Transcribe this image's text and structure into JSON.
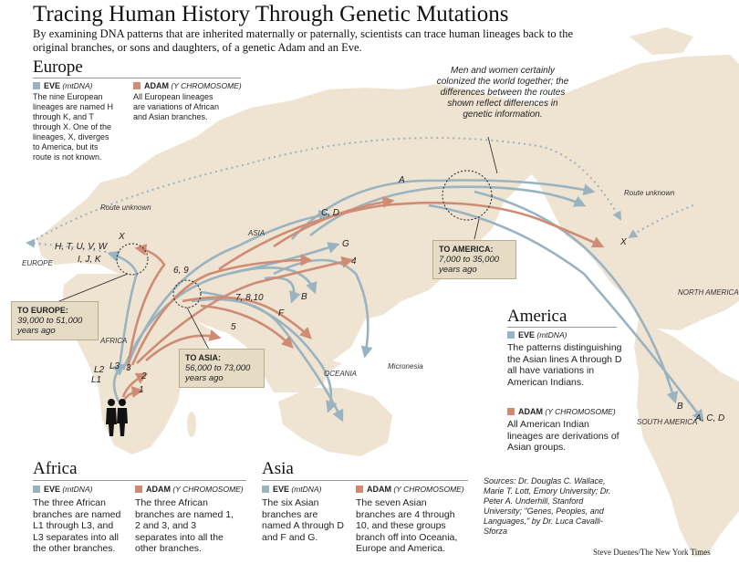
{
  "title": "Tracing Human History Through Genetic Mutations",
  "subtitle": "By examining DNA patterns that are inherited maternally or paternally, scientists can trace human lineages back to the original branches, or sons and daughters, of a genetic Adam and an Eve.",
  "colors": {
    "eve": "#9ab3c0",
    "adam": "#cf8c74",
    "land": "#efe3d2",
    "callout": "#e6dcc6"
  },
  "europe": {
    "heading": "Europe",
    "eve_label": "EVE",
    "eve_sub": "(mtDNA)",
    "eve_text": "The nine European lineages are named H through K, and T through X. One of the lineages, X, diverges to America, but its route is not known.",
    "adam_label": "ADAM",
    "adam_sub": "(Y CHROMOSOME)",
    "adam_text": "All European lineages are variations of African and Asian branches."
  },
  "quote": "Men and women certainly colonized the world together; the differences between the routes shown reflect differences in genetic information.",
  "callouts": {
    "europe": {
      "title": "TO EUROPE:",
      "range": "39,000 to 51,000 years ago"
    },
    "asia": {
      "title": "TO ASIA:",
      "range": "56,000 to 73,000 years ago"
    },
    "america": {
      "title": "TO AMERICA:",
      "range": "7,000 to 35,000 years ago"
    }
  },
  "america": {
    "heading": "America",
    "eve_label": "EVE",
    "eve_sub": "(mtDNA)",
    "eve_text": "The patterns distinguishing the Asian lines A through D all have variations in American Indians.",
    "adam_label": "ADAM",
    "adam_sub": "(Y CHROMOSOME)",
    "adam_text": "All American Indian lineages are derivations of Asian groups."
  },
  "africa": {
    "heading": "Africa",
    "eve_label": "EVE",
    "eve_sub": "(mtDNA)",
    "eve_text": "The three African branches are named L1 through L3, and L3 separates into all the other branches.",
    "adam_label": "ADAM",
    "adam_sub": "(Y CHROMOSOME)",
    "adam_text": "The three African branches are named 1, 2 and 3, and 3 separates into all the other branches."
  },
  "asia": {
    "heading": "Asia",
    "eve_label": "EVE",
    "eve_sub": "(mtDNA)",
    "eve_text": "The six Asian branches are named A through D and F and G.",
    "adam_label": "ADAM",
    "adam_sub": "(Y CHROMOSOME)",
    "adam_text": "The seven Asian branches are 4 through 10, and these groups branch off into Oceania, Europe and America."
  },
  "sources": "Sources: Dr. Douglas C. Wallace, Marie T. Lott, Emory University; Dr. Peter A. Underhill, Stanford University; \"Genes, Peoples, and Languages,\" by Dr. Luca Cavalli-Sforza",
  "credit": "Steve Duenes/The New York Times",
  "map_labels": {
    "europe": "EUROPE",
    "asia": "ASIA",
    "africa": "AFRICA",
    "oceania": "OCEANIA",
    "micronesia": "Micronesia",
    "north_america": "NORTH AMERICA",
    "south_america": "SOUTH AMERICA",
    "route_unknown": "Route unknown"
  },
  "lineage_labels": {
    "europe_row1": "H, T, U, V, W",
    "europe_row2": "I, J, K",
    "x_europe": "X",
    "x_america": "X",
    "cd": "C, D",
    "a": "A",
    "g": "G",
    "b_asia": "B",
    "f": "F",
    "y69": "6, 9",
    "y7810": "7, 8,10",
    "y4": "4",
    "y5": "5",
    "y1": "1",
    "y2": "2",
    "y3": "3",
    "l1": "L1",
    "l2": "L2",
    "l3": "L3",
    "b_america": "B",
    "acd_america": "A, C, D"
  }
}
